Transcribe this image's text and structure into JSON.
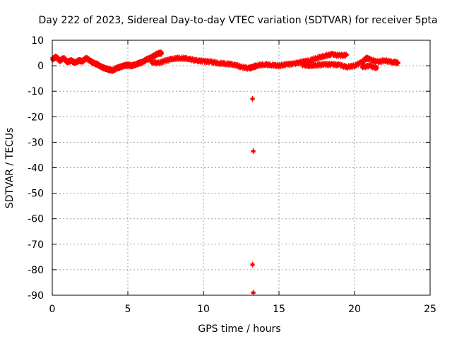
{
  "chart_data": {
    "type": "scatter",
    "title": "Day 222 of 2023, Sidereal Day-to-day VTEC variation (SDTVAR) for receiver 5pta",
    "xlabel": "GPS time / hours",
    "ylabel": "SDTVAR / TECUs",
    "xlim": [
      0,
      25
    ],
    "ylim": [
      -90,
      10
    ],
    "xticks": [
      0,
      5,
      10,
      15,
      20,
      25
    ],
    "yticks": [
      10,
      0,
      -10,
      -20,
      -30,
      -40,
      -50,
      -60,
      -70,
      -80,
      -90
    ],
    "grid": true,
    "marker_color": "#ff0000",
    "series": [
      {
        "name": "SDTVAR",
        "points": [
          [
            0.0,
            2.5
          ],
          [
            0.25,
            3.5
          ],
          [
            0.5,
            2.0
          ],
          [
            0.75,
            3.0
          ],
          [
            1.0,
            1.5
          ],
          [
            1.25,
            2.0
          ],
          [
            1.5,
            1.2
          ],
          [
            1.75,
            2.0
          ],
          [
            2.0,
            1.8
          ],
          [
            2.25,
            3.0
          ],
          [
            2.5,
            2.0
          ],
          [
            2.75,
            1.0
          ],
          [
            3.0,
            0.5
          ],
          [
            3.25,
            -0.5
          ],
          [
            3.5,
            -1.0
          ],
          [
            3.75,
            -1.5
          ],
          [
            4.0,
            -1.8
          ],
          [
            4.25,
            -1.0
          ],
          [
            4.5,
            -0.5
          ],
          [
            4.75,
            0.0
          ],
          [
            5.0,
            0.3
          ],
          [
            5.25,
            0.0
          ],
          [
            5.5,
            0.5
          ],
          [
            5.75,
            1.0
          ],
          [
            6.0,
            1.5
          ],
          [
            6.25,
            2.5
          ],
          [
            6.5,
            3.0
          ],
          [
            6.75,
            4.0
          ],
          [
            7.0,
            4.8
          ],
          [
            7.25,
            5.0
          ],
          [
            6.5,
            1.5
          ],
          [
            7.0,
            1.0
          ],
          [
            7.5,
            2.0
          ],
          [
            8.0,
            2.8
          ],
          [
            8.5,
            3.0
          ],
          [
            9.0,
            2.8
          ],
          [
            9.5,
            2.0
          ],
          [
            10.0,
            1.8
          ],
          [
            10.5,
            1.5
          ],
          [
            11.0,
            1.0
          ],
          [
            11.5,
            0.8
          ],
          [
            12.0,
            0.5
          ],
          [
            12.5,
            -0.5
          ],
          [
            13.0,
            -1.0
          ],
          [
            13.3,
            -0.5
          ],
          [
            13.5,
            0.0
          ],
          [
            14.0,
            0.5
          ],
          [
            14.5,
            0.3
          ],
          [
            15.0,
            0.0
          ],
          [
            15.5,
            0.5
          ],
          [
            16.0,
            0.8
          ],
          [
            16.5,
            1.5
          ],
          [
            17.0,
            2.0
          ],
          [
            17.5,
            3.0
          ],
          [
            18.0,
            3.8
          ],
          [
            18.5,
            4.5
          ],
          [
            19.0,
            4.0
          ],
          [
            19.5,
            4.2
          ],
          [
            16.5,
            0.5
          ],
          [
            17.0,
            0.0
          ],
          [
            17.5,
            0.3
          ],
          [
            18.0,
            0.5
          ],
          [
            18.5,
            0.5
          ],
          [
            19.0,
            0.3
          ],
          [
            19.5,
            -0.5
          ],
          [
            20.0,
            0.0
          ],
          [
            20.5,
            1.5
          ],
          [
            20.8,
            3.0
          ],
          [
            21.0,
            2.5
          ],
          [
            21.5,
            1.5
          ],
          [
            22.0,
            2.0
          ],
          [
            22.5,
            1.5
          ],
          [
            22.9,
            1.2
          ],
          [
            20.5,
            -0.5
          ],
          [
            21.0,
            0.0
          ],
          [
            21.5,
            -1.0
          ],
          [
            13.25,
            -13
          ],
          [
            13.3,
            -33.5
          ],
          [
            13.25,
            -78
          ],
          [
            13.3,
            -89
          ]
        ]
      }
    ]
  }
}
